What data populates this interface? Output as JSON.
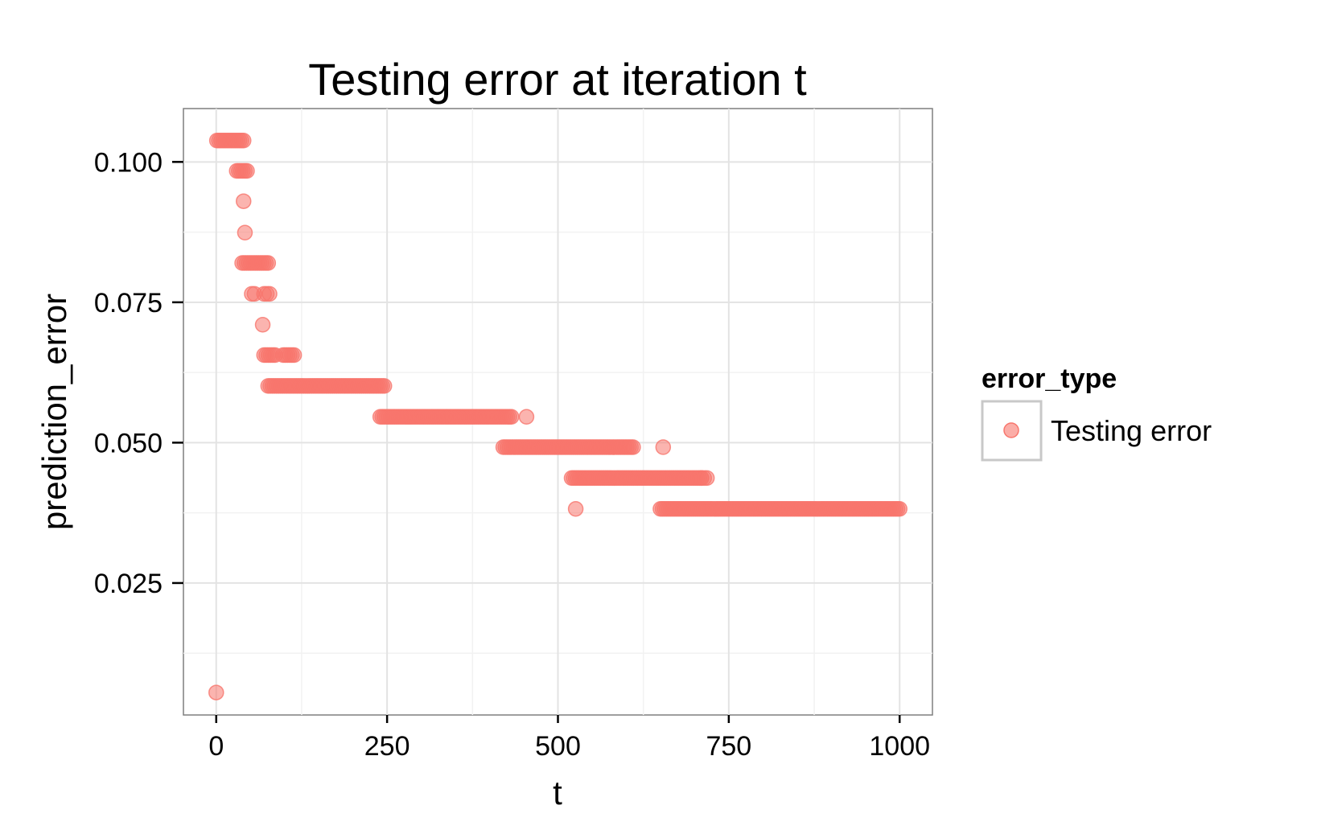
{
  "chart_data": {
    "type": "scatter",
    "title": "Testing error at iteration t",
    "xlabel": "t",
    "ylabel": "prediction_error",
    "xlim": [
      -48,
      1048
    ],
    "ylim": [
      0.0015,
      0.1095
    ],
    "x_ticks": [
      0,
      250,
      500,
      750,
      1000
    ],
    "x_tick_labels": [
      "0",
      "250",
      "500",
      "750",
      "1000"
    ],
    "y_ticks": [
      0.025,
      0.05,
      0.075,
      0.1
    ],
    "y_tick_labels": [
      "0.025",
      "0.050",
      "0.075",
      "0.100"
    ],
    "grid": true,
    "legend": {
      "title": "error_type",
      "position": "right",
      "entries": [
        {
          "label": "Testing error",
          "color": "#F8766D"
        }
      ]
    },
    "series": [
      {
        "name": "Testing error",
        "color": "#F8766D",
        "segments": [
          {
            "x_from": 0,
            "x_to": 0,
            "y": 0.0055
          },
          {
            "x_from": 1,
            "x_to": 40,
            "y": 0.1038
          },
          {
            "x_from": 30,
            "x_to": 45,
            "y": 0.0984
          },
          {
            "x_from": 40,
            "x_to": 40,
            "y": 0.093
          },
          {
            "x_from": 42,
            "x_to": 42,
            "y": 0.0874
          },
          {
            "x_from": 38,
            "x_to": 76,
            "y": 0.082
          },
          {
            "x_from": 52,
            "x_to": 56,
            "y": 0.0765
          },
          {
            "x_from": 70,
            "x_to": 78,
            "y": 0.0765
          },
          {
            "x_from": 68,
            "x_to": 68,
            "y": 0.071
          },
          {
            "x_from": 70,
            "x_to": 86,
            "y": 0.0656
          },
          {
            "x_from": 98,
            "x_to": 114,
            "y": 0.0656
          },
          {
            "x_from": 76,
            "x_to": 246,
            "y": 0.0601
          },
          {
            "x_from": 240,
            "x_to": 432,
            "y": 0.0546
          },
          {
            "x_from": 454,
            "x_to": 454,
            "y": 0.0546
          },
          {
            "x_from": 420,
            "x_to": 610,
            "y": 0.0492
          },
          {
            "x_from": 654,
            "x_to": 654,
            "y": 0.0492
          },
          {
            "x_from": 520,
            "x_to": 710,
            "y": 0.0437
          },
          {
            "x_from": 710,
            "x_to": 718,
            "y": 0.0437
          },
          {
            "x_from": 526,
            "x_to": 526,
            "y": 0.0382
          },
          {
            "x_from": 650,
            "x_to": 1000,
            "y": 0.0382
          }
        ]
      }
    ]
  }
}
